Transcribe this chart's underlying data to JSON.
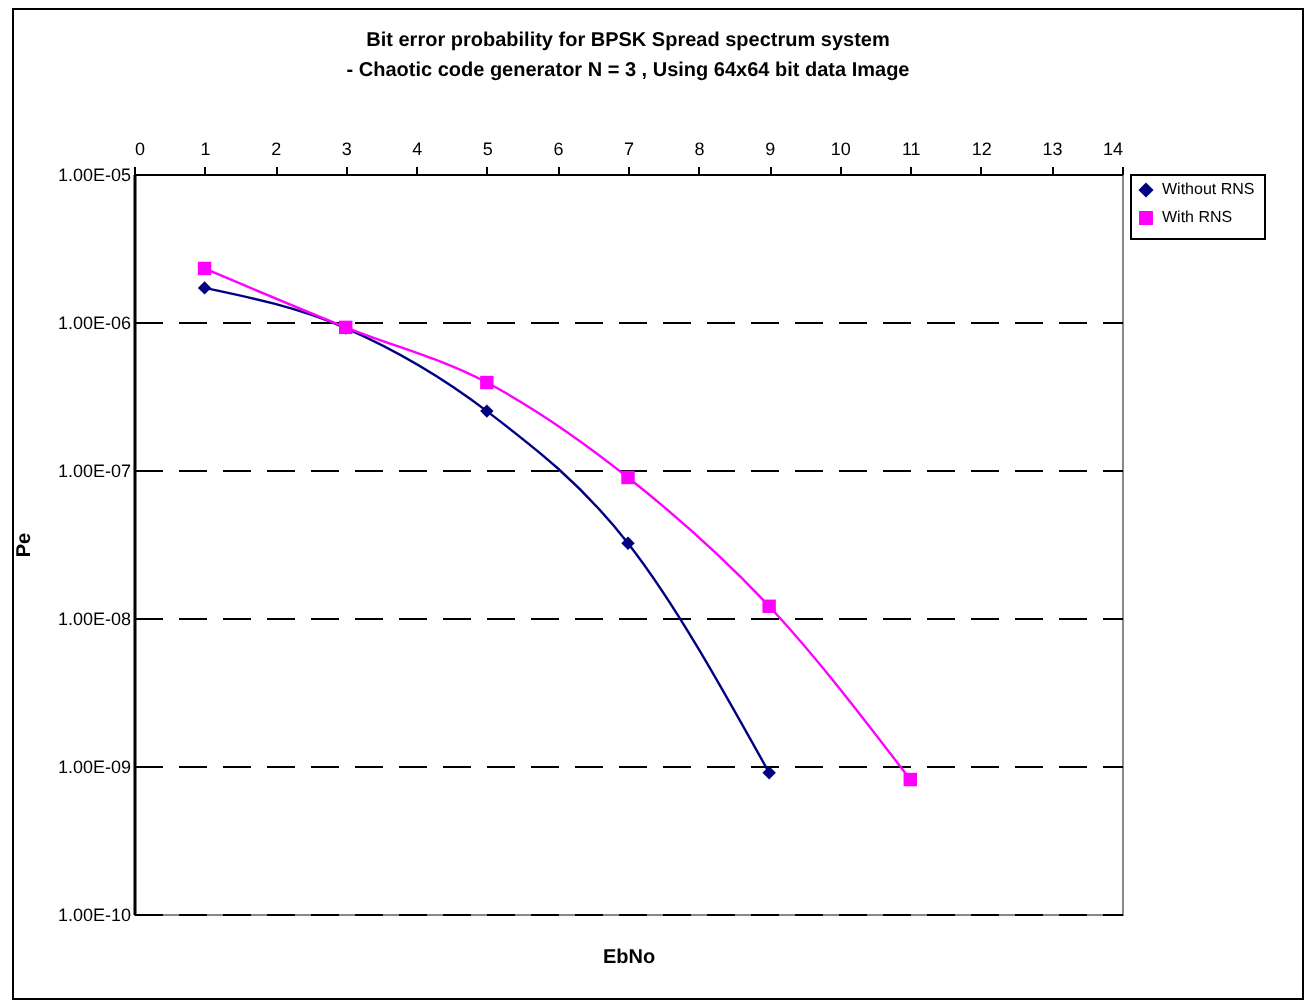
{
  "chart_data": {
    "type": "line",
    "title": "Bit error probability for BPSK Spread spectrum system\n- Chaotic code generator  N = 3 , Using 64x64 bit data Image",
    "xlabel": "EbNo",
    "ylabel": "Pe",
    "log": "y",
    "grid": "y",
    "legend": "right",
    "xlim": [
      0,
      14
    ],
    "xticks": [
      0,
      1,
      2,
      3,
      4,
      5,
      6,
      7,
      8,
      9,
      10,
      11,
      12,
      13,
      14
    ],
    "ylim": [
      1e-10,
      1e-05
    ],
    "yticks": [
      {
        "value": 1e-10,
        "label": "1.00E-10"
      },
      {
        "value": 1e-09,
        "label": "1.00E-09"
      },
      {
        "value": 1e-08,
        "label": "1.00E-08"
      },
      {
        "value": 1e-07,
        "label": "1.00E-07"
      },
      {
        "value": 1e-06,
        "label": "1.00E-06"
      },
      {
        "value": 1e-05,
        "label": "1.00E-05"
      }
    ],
    "series": [
      {
        "name": "Without RNS",
        "color": "#000080",
        "marker": "diamond",
        "x": [
          1,
          3,
          5,
          7,
          9
        ],
        "values": [
          1.7e-06,
          9.1e-07,
          2.5e-07,
          3.2e-08,
          9e-10
        ]
      },
      {
        "name": "With RNS",
        "color": "#ff00ff",
        "marker": "square",
        "x": [
          1,
          3,
          5,
          7,
          9,
          11
        ],
        "values": [
          2.3e-06,
          9.2e-07,
          3.9e-07,
          8.9e-08,
          1.2e-08,
          8.1e-10
        ]
      }
    ]
  }
}
